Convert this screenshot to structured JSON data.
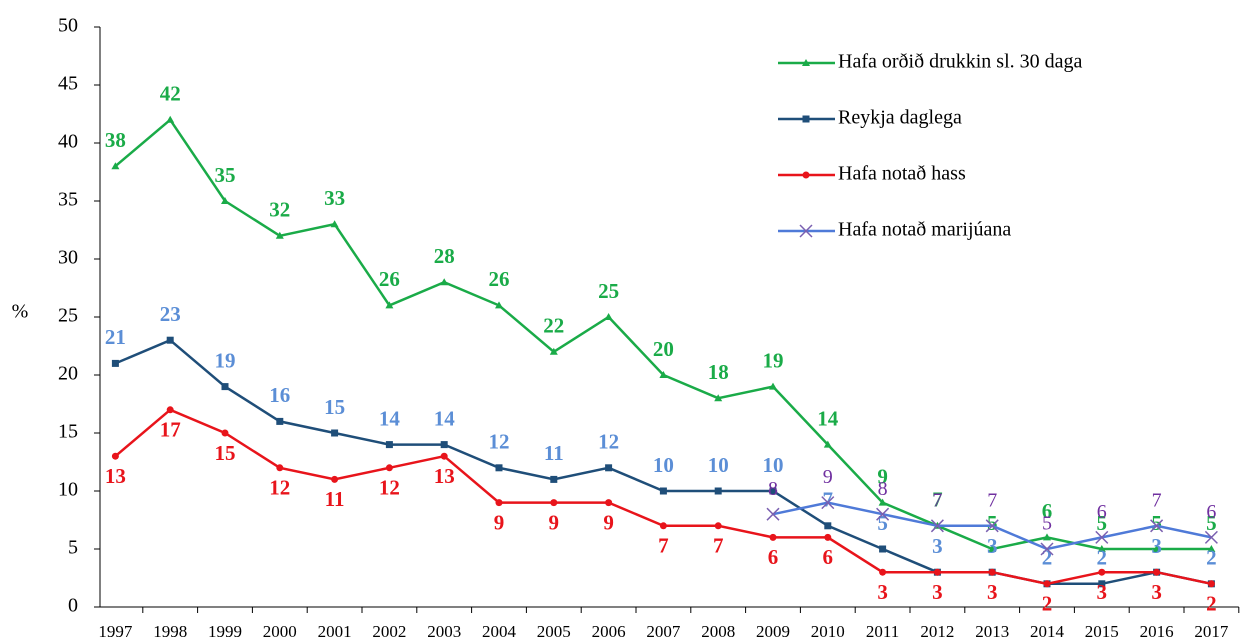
{
  "chart_data": {
    "type": "line",
    "y_label": "%",
    "categories": [
      "1997",
      "1998",
      "1999",
      "2000",
      "2001",
      "2002",
      "2003",
      "2004",
      "2005",
      "2006",
      "2007",
      "2008",
      "2009",
      "2010",
      "2011",
      "2012",
      "2013",
      "2014",
      "2015",
      "2016",
      "2017"
    ],
    "series": [
      {
        "name": "Hafa orðið drukkin sl. 30 daga",
        "color": "#1aab48",
        "label_color": "#1aab48",
        "marker": "triangle",
        "label_pos": "above",
        "values": [
          38,
          42,
          35,
          32,
          33,
          26,
          28,
          26,
          22,
          25,
          20,
          18,
          19,
          14,
          9,
          7,
          5,
          6,
          5,
          5,
          5
        ]
      },
      {
        "name": "Reykja daglega",
        "color": "#1f4e79",
        "label_color": "#5b8ed6",
        "marker": "square",
        "label_pos": "above",
        "values": [
          21,
          23,
          19,
          16,
          15,
          14,
          14,
          12,
          11,
          12,
          10,
          10,
          10,
          7,
          5,
          3,
          3,
          2,
          2,
          3,
          2
        ]
      },
      {
        "name": "Hafa notað hass",
        "color": "#e8141b",
        "label_color": "#e8141b",
        "marker": "circle",
        "label_pos": "below",
        "values": [
          13,
          17,
          15,
          12,
          11,
          12,
          13,
          9,
          9,
          9,
          7,
          7,
          6,
          6,
          3,
          3,
          3,
          2,
          3,
          3,
          2
        ]
      },
      {
        "name": "Hafa notað marijúana",
        "color": "#4f7ad8",
        "label_color": "#7030a0",
        "marker": "x",
        "label_pos": "above",
        "values": [
          null,
          null,
          null,
          null,
          null,
          null,
          null,
          null,
          null,
          null,
          null,
          null,
          8,
          9,
          8,
          7,
          7,
          5,
          6,
          7,
          6
        ]
      }
    ],
    "ylim": [
      0,
      50
    ],
    "yticks": [
      0,
      5,
      10,
      15,
      20,
      25,
      30,
      35,
      40,
      45,
      50
    ],
    "legend": "top-right"
  }
}
